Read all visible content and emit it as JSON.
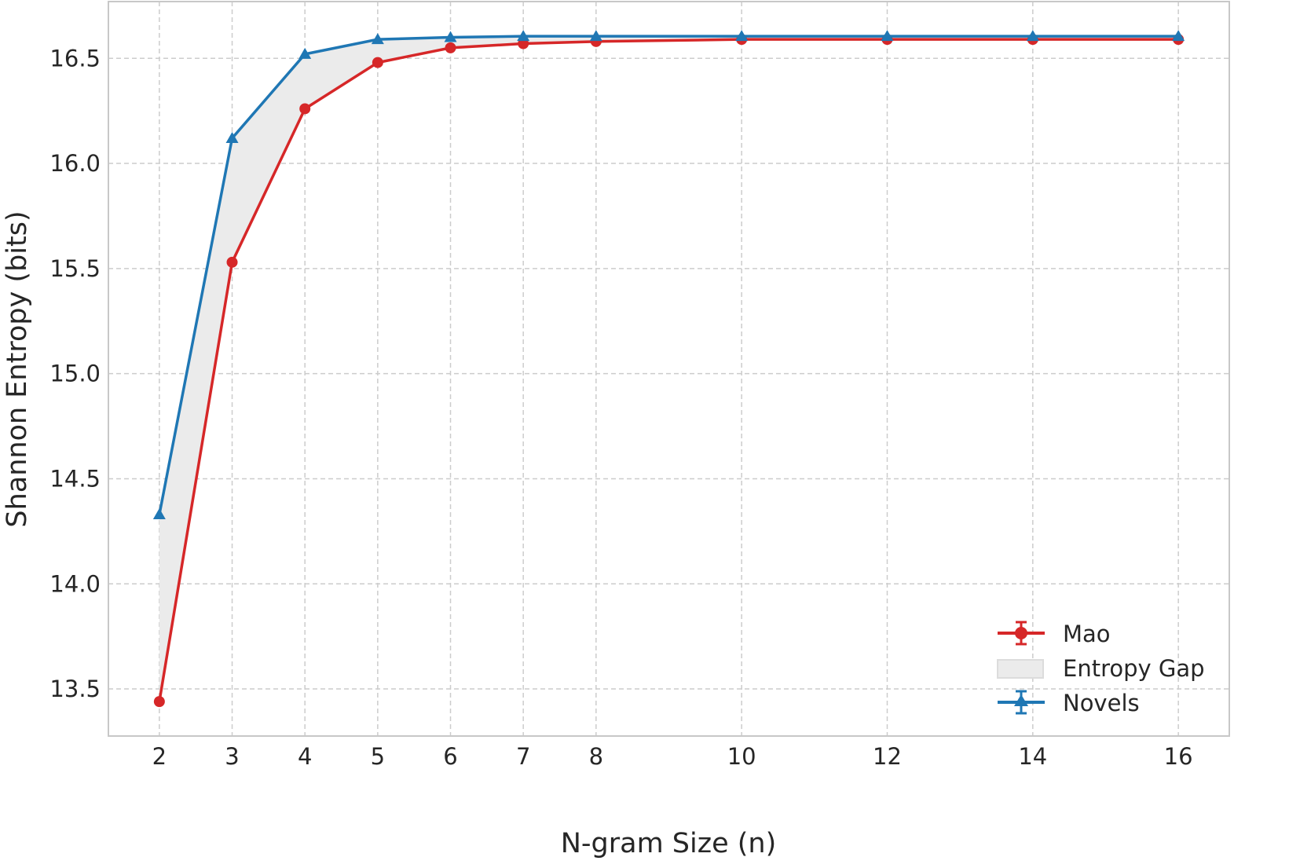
{
  "chart_data": {
    "type": "line",
    "title": "",
    "xlabel": "N-gram Size (n)",
    "ylabel": "Shannon Entropy (bits)",
    "x": [
      2,
      3,
      4,
      5,
      6,
      7,
      8,
      10,
      12,
      14,
      16
    ],
    "xticks": [
      "2",
      "3",
      "4",
      "5",
      "6",
      "7",
      "8",
      "10",
      "12",
      "14",
      "16"
    ],
    "yticks": [
      "13.5",
      "14.0",
      "14.5",
      "15.0",
      "15.5",
      "16.0",
      "16.5"
    ],
    "xlim": [
      1.3,
      16.7
    ],
    "ylim": [
      13.276,
      16.77
    ],
    "grid": true,
    "legend_placement": "lower-right",
    "series": [
      {
        "name": "Mao",
        "color": "#d62728",
        "marker": "circle",
        "values": [
          13.44,
          15.53,
          16.26,
          16.48,
          16.55,
          16.57,
          16.58,
          16.59,
          16.59,
          16.59,
          16.59
        ]
      },
      {
        "name": "Novels",
        "color": "#1f77b4",
        "marker": "triangle",
        "values": [
          14.33,
          16.12,
          16.52,
          16.59,
          16.6,
          16.605,
          16.605,
          16.605,
          16.605,
          16.605,
          16.605
        ]
      }
    ],
    "fill_between": {
      "name": "Entropy Gap",
      "color": "#ebebeb"
    }
  }
}
